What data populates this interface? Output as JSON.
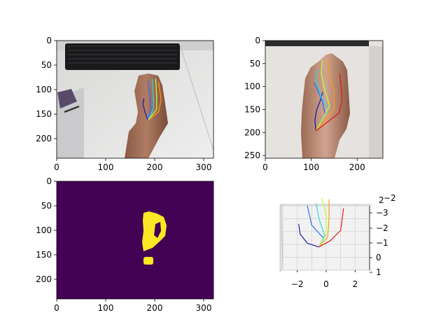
{
  "figure": {
    "layout": "2x2 grid of subplots"
  },
  "chart_data": [
    {
      "type": "image",
      "panel": "top-left",
      "content": "RGB photo of a hand on a desk with keyboard, with overlaid hand skeleton keypoints",
      "xlim": [
        0,
        320
      ],
      "ylim": [
        240,
        0
      ],
      "xticks": [
        0,
        100,
        200,
        300
      ],
      "yticks": [
        0,
        50,
        100,
        150,
        200
      ],
      "skeleton": {
        "wrist": [
          186,
          163
        ],
        "fingers": [
          {
            "name": "thumb",
            "color": "#1a1ab4",
            "points": [
              [
                186,
                163
              ],
              [
                180,
                145
              ],
              [
                176,
                130
              ],
              [
                178,
                118
              ]
            ]
          },
          {
            "name": "index",
            "color": "#2a6cff",
            "points": [
              [
                186,
                163
              ],
              [
                192,
                140
              ],
              [
                190,
                115
              ],
              [
                188,
                95
              ],
              [
                186,
                82
              ]
            ]
          },
          {
            "name": "middle",
            "color": "#29d9e5",
            "points": [
              [
                186,
                163
              ],
              [
                198,
                138
              ],
              [
                197,
                112
              ],
              [
                196,
                92
              ],
              [
                195,
                78
              ]
            ]
          },
          {
            "name": "ring",
            "color": "#b8ff3c",
            "points": [
              [
                186,
                163
              ],
              [
                204,
                140
              ],
              [
                204,
                115
              ],
              [
                203,
                95
              ],
              [
                202,
                78
              ]
            ]
          },
          {
            "name": "pinky",
            "color": "#ff9a14",
            "points": [
              [
                186,
                163
              ],
              [
                208,
                145
              ],
              [
                213,
                120
              ],
              [
                210,
                100
              ],
              [
                208,
                85
              ]
            ]
          }
        ]
      }
    },
    {
      "type": "image",
      "panel": "top-right",
      "content": "Cropped RGB photo of the hand with overlaid skeleton keypoints",
      "xlim": [
        0,
        256
      ],
      "ylim": [
        256,
        0
      ],
      "xticks": [
        0,
        100,
        200
      ],
      "yticks": [
        0,
        50,
        100,
        150,
        200,
        250
      ],
      "skeleton": {
        "wrist": [
          110,
          197
        ],
        "fingers": [
          {
            "name": "thumb",
            "color": "#1a1ab4",
            "points": [
              [
                110,
                197
              ],
              [
                108,
                172
              ],
              [
                112,
                150
              ],
              [
                120,
                130
              ],
              [
                125,
                112
              ]
            ]
          },
          {
            "name": "index",
            "color": "#2a6cff",
            "points": [
              [
                110,
                197
              ],
              [
                130,
                160
              ],
              [
                124,
                130
              ],
              [
                112,
                103
              ],
              [
                106,
                92
              ]
            ]
          },
          {
            "name": "middle",
            "color": "#29d9e5",
            "points": [
              [
                110,
                197
              ],
              [
                136,
                150
              ],
              [
                120,
                118
              ],
              [
                110,
                86
              ],
              [
                112,
                62
              ]
            ]
          },
          {
            "name": "ring",
            "color": "#b8ff3c",
            "points": [
              [
                110,
                197
              ],
              [
                140,
                142
              ],
              [
                128,
                102
              ],
              [
                122,
                72
              ],
              [
                124,
                42
              ]
            ]
          },
          {
            "name": "pinky",
            "color": "#ff9a14",
            "points": [
              [
                110,
                197
              ],
              [
                150,
                150
              ],
              [
                150,
                110
              ],
              [
                140,
                78
              ],
              [
                137,
                40
              ]
            ]
          },
          {
            "name": "little",
            "color": "#e01b1b",
            "points": [
              [
                110,
                197
              ],
              [
                160,
                158
              ],
              [
                167,
                132
              ],
              [
                165,
                100
              ],
              [
                162,
                72
              ]
            ]
          }
        ]
      }
    },
    {
      "type": "heatmap",
      "panel": "bottom-left",
      "content": "Binary hand segmentation mask (viridis colormap)",
      "background_color": "#440154",
      "mask_color": "#fde725",
      "xlim": [
        0,
        320
      ],
      "ylim": [
        240,
        0
      ],
      "xticks": [
        0,
        100,
        200,
        300
      ],
      "yticks": [
        0,
        50,
        100,
        150,
        200
      ]
    },
    {
      "type": "line3d",
      "panel": "bottom-right",
      "content": "3D hand skeleton",
      "xlim": [
        -3,
        3
      ],
      "ylim": [
        -3,
        2
      ],
      "xticks": [
        -2,
        0,
        2
      ],
      "zticks": [
        "-3",
        "-2",
        "-1",
        "0",
        "1"
      ],
      "zticks_extra": [
        "2",
        "−2"
      ],
      "skeleton": {
        "wrist": [
          -0.5,
          0.2
        ],
        "fingers": [
          {
            "name": "thumb",
            "color": "#1a1ab4",
            "points": [
              [
                -0.5,
                0.2
              ],
              [
                -1.3,
                -0.1
              ],
              [
                -1.8,
                -0.8
              ],
              [
                -1.9,
                -1.6
              ]
            ]
          },
          {
            "name": "index",
            "color": "#2a6cff",
            "points": [
              [
                -0.5,
                0.2
              ],
              [
                -0.2,
                -0.5
              ],
              [
                -1.0,
                -1.5
              ],
              [
                -1.3,
                -3.0
              ]
            ]
          },
          {
            "name": "middle",
            "color": "#29d9e5",
            "points": [
              [
                -0.5,
                0.2
              ],
              [
                -0.1,
                -0.7
              ],
              [
                -0.5,
                -2.0
              ],
              [
                -0.7,
                -3.2
              ]
            ]
          },
          {
            "name": "ring",
            "color": "#b8ff3c",
            "points": [
              [
                -0.5,
                0.2
              ],
              [
                0.0,
                -0.8
              ],
              [
                0.0,
                -2.2
              ],
              [
                -0.3,
                -3.6
              ]
            ]
          },
          {
            "name": "pinky",
            "color": "#ff9a14",
            "points": [
              [
                -0.5,
                0.2
              ],
              [
                0.1,
                -0.6
              ],
              [
                0.2,
                -2.0
              ],
              [
                0.2,
                -3.5
              ]
            ]
          },
          {
            "name": "little",
            "color": "#e01b1b",
            "points": [
              [
                -0.5,
                0.2
              ],
              [
                0.3,
                -0.3
              ],
              [
                1.0,
                -1.1
              ],
              [
                1.2,
                -2.8
              ]
            ]
          }
        ]
      }
    }
  ]
}
